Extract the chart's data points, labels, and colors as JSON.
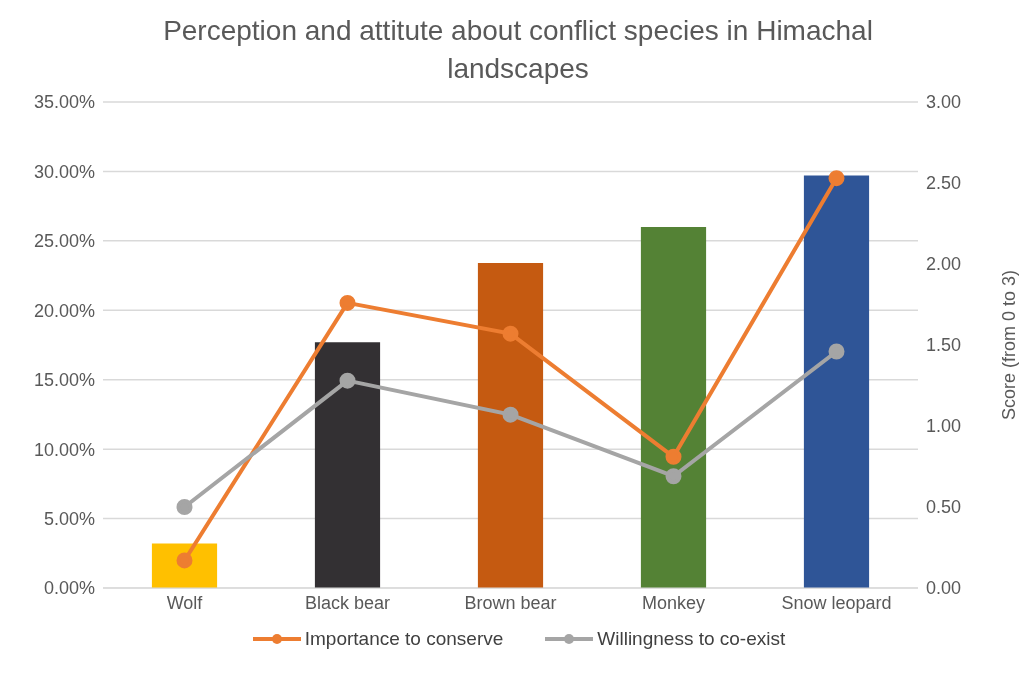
{
  "chart_data": {
    "type": "bar",
    "title": "Perception and attitute about conflict species in Himachal landscapes",
    "categories": [
      "Wolf",
      "Black bear",
      "Brown bear",
      "Monkey",
      "Snow leopard"
    ],
    "series": [
      {
        "colors": [
          "#ffc000",
          "#333033",
          "#c55a11",
          "#548235",
          "#2f5597"
        ],
        "values": [
          3.2,
          17.7,
          23.4,
          26.0,
          29.7
        ]
      },
      {
        "type": "line",
        "name": "Importance to conserve",
        "color": "#ed7d31",
        "axis": "y2",
        "values": [
          0.17,
          1.76,
          1.57,
          0.81,
          2.53
        ]
      },
      {
        "type": "line",
        "name": "Willingness to co-exist",
        "color": "#a5a5a5",
        "axis": "y2",
        "values": [
          0.5,
          1.28,
          1.07,
          0.69,
          1.46
        ]
      }
    ],
    "ylim": [
      0,
      35
    ],
    "yticks": [
      {
        "value": 0,
        "label": "0.00%"
      },
      {
        "value": 5,
        "label": "5.00%"
      },
      {
        "value": 10,
        "label": "10.00%"
      },
      {
        "value": 15,
        "label": "15.00%"
      },
      {
        "value": 20,
        "label": "20.00%"
      },
      {
        "value": 25,
        "label": "25.00%"
      },
      {
        "value": 30,
        "label": "30.00%"
      },
      {
        "value": 35,
        "label": "35.00%"
      }
    ],
    "y2label": "Score (from 0 to 3)",
    "y2lim": [
      0,
      3
    ],
    "y2ticks": [
      {
        "value": 0,
        "label": "0.00"
      },
      {
        "value": 0.5,
        "label": "0.50"
      },
      {
        "value": 1,
        "label": "1.00"
      },
      {
        "value": 1.5,
        "label": "1.50"
      },
      {
        "value": 2,
        "label": "2.00"
      },
      {
        "value": 2.5,
        "label": "2.50"
      },
      {
        "value": 3,
        "label": "3.00"
      }
    ],
    "grid": "y",
    "legend": "bottom",
    "marker": "circle",
    "line_style": "solid"
  }
}
